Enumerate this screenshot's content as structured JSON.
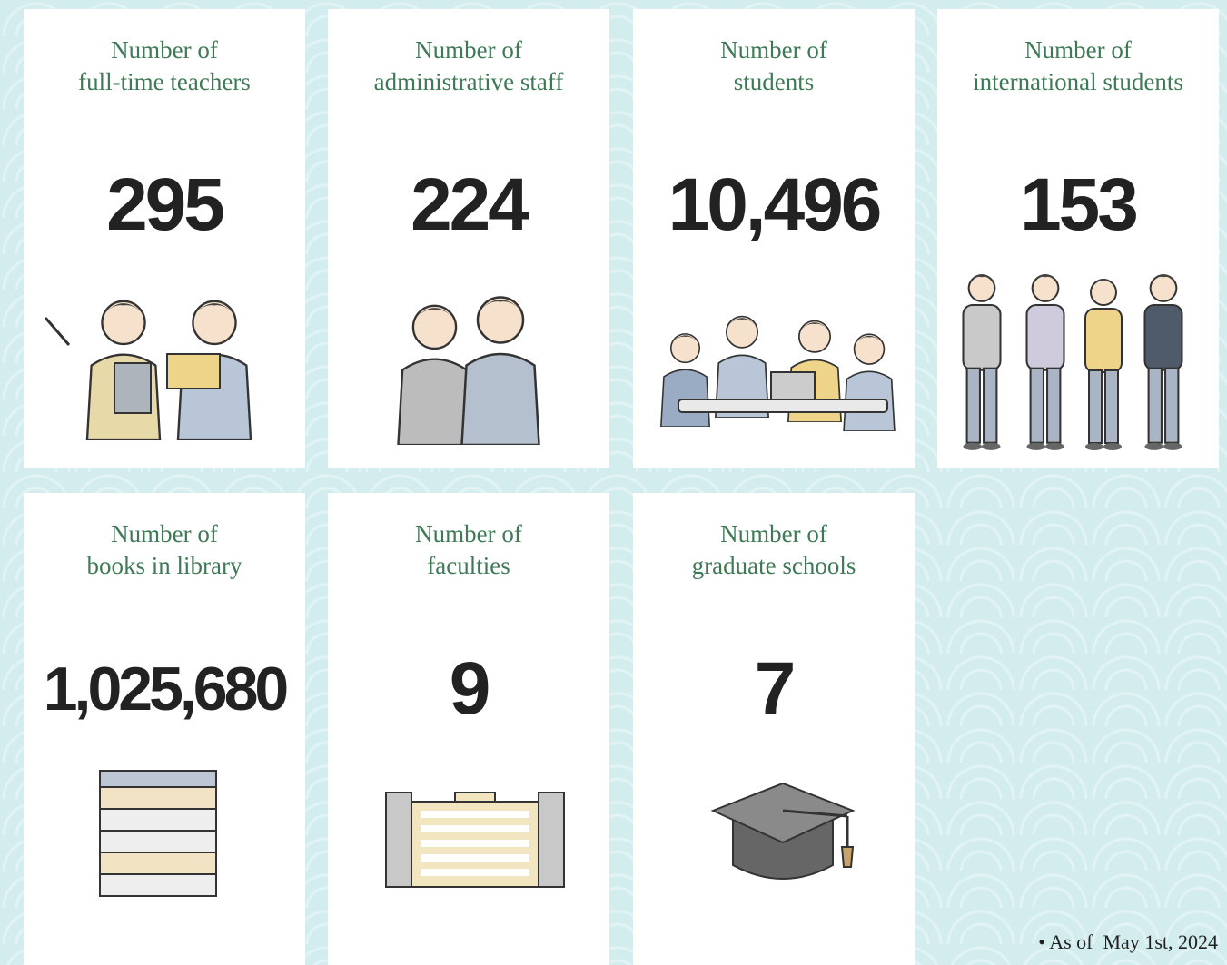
{
  "cards": [
    {
      "label_lines": [
        "Number of",
        "full-time teachers"
      ],
      "value": "295"
    },
    {
      "label_lines": [
        "Number of",
        "administrative staff"
      ],
      "value": "224"
    },
    {
      "label_lines": [
        "Number of",
        "students"
      ],
      "value": "10,496"
    },
    {
      "label_lines": [
        "Number of",
        "international students"
      ],
      "value": "153"
    },
    {
      "label_lines": [
        "Number of",
        "books in library"
      ],
      "value": "1,025,680"
    },
    {
      "label_lines": [
        "Number of",
        "faculties"
      ],
      "value": "9"
    },
    {
      "label_lines": [
        "Number of",
        "graduate schools"
      ],
      "value": "7"
    }
  ],
  "footnote": "• As of  May 1st, 2024"
}
